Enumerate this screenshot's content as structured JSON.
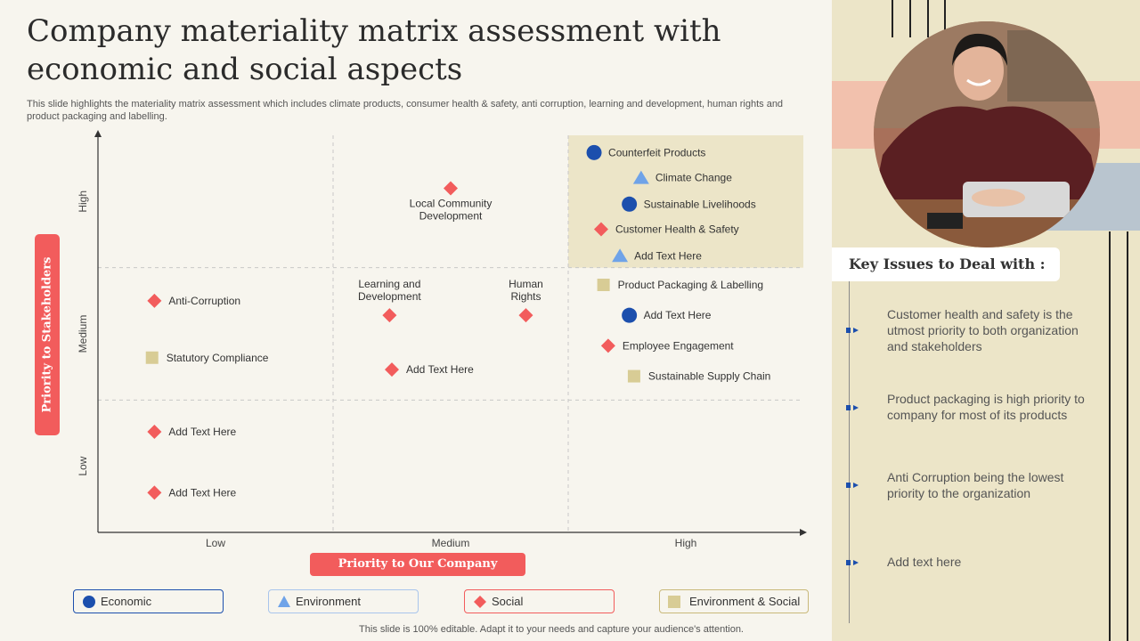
{
  "title": "Company materiality matrix assessment with economic and social aspects",
  "subtitle": "This slide highlights the materiality matrix assessment which includes climate products, consumer health & safety,  anti corruption, learning and development, human rights and product packaging and labelling.",
  "footer": "This slide is 100% editable. Adapt it to your needs and capture your audience's attention.",
  "colors": {
    "economic": "#1c4fad",
    "environment": "#6fa3e8",
    "social": "#f25c5c",
    "env_social": "#d8cc95",
    "accent": "#f25c5c",
    "highlight": "#ece5c8"
  },
  "chart_data": {
    "type": "scatter",
    "xlabel": "Priority to Our Company",
    "ylabel": "Priority to Stakeholders",
    "x_ticks": [
      "Low",
      "Medium",
      "High"
    ],
    "y_ticks": [
      "Low",
      "Medium",
      "High"
    ],
    "xlim": [
      0,
      3
    ],
    "ylim": [
      0,
      3
    ],
    "highlight_cell": {
      "x": [
        2,
        3
      ],
      "y": [
        2,
        3
      ]
    },
    "categories": [
      {
        "key": "economic",
        "name": "Economic",
        "marker": "circle"
      },
      {
        "key": "environment",
        "name": "Environment",
        "marker": "triangle"
      },
      {
        "key": "social",
        "name": "Social",
        "marker": "diamond"
      },
      {
        "key": "env_social",
        "name": "Environment  & Social",
        "marker": "square"
      }
    ],
    "points": [
      {
        "label": "Counterfeit Products",
        "category": "economic",
        "x": 2.11,
        "y": 2.87
      },
      {
        "label": "Climate Change",
        "category": "environment",
        "x": 2.31,
        "y": 2.68
      },
      {
        "label": "Sustainable Livelihoods",
        "category": "economic",
        "x": 2.26,
        "y": 2.48
      },
      {
        "label": "Customer Health & Safety",
        "category": "social",
        "x": 2.14,
        "y": 2.29
      },
      {
        "label": "Add Text Here",
        "category": "environment",
        "x": 2.22,
        "y": 2.09
      },
      {
        "label": "Local Community Development",
        "category": "social",
        "x": 1.5,
        "y": 2.6
      },
      {
        "label": "Product Packaging & Labelling",
        "category": "env_social",
        "x": 2.15,
        "y": 1.87
      },
      {
        "label": "Add Text Here",
        "category": "economic",
        "x": 2.26,
        "y": 1.64
      },
      {
        "label": "Employee Engagement",
        "category": "social",
        "x": 2.17,
        "y": 1.41
      },
      {
        "label": "Sustainable Supply Chain",
        "category": "env_social",
        "x": 2.28,
        "y": 1.18
      },
      {
        "label": "Learning and Development",
        "category": "social",
        "x": 1.24,
        "y": 1.64
      },
      {
        "label": "Human Rights",
        "category": "social",
        "x": 1.82,
        "y": 1.64
      },
      {
        "label": "Add Text Here",
        "category": "social",
        "x": 1.25,
        "y": 1.23
      },
      {
        "label": "Anti-Corruption",
        "category": "social",
        "x": 0.24,
        "y": 1.75
      },
      {
        "label": "Statutory Compliance",
        "category": "env_social",
        "x": 0.23,
        "y": 1.32
      },
      {
        "label": "Add Text Here",
        "category": "social",
        "x": 0.24,
        "y": 0.76
      },
      {
        "label": "Add Text Here",
        "category": "social",
        "x": 0.24,
        "y": 0.3
      }
    ]
  },
  "key_issues": {
    "heading": "Key Issues to Deal with :",
    "items": [
      "Customer health and safety is the utmost priority to both organization and stakeholders",
      "Product packaging is high priority to company for most of its products",
      "Anti Corruption being the lowest priority to the organization",
      "Add text here"
    ]
  }
}
